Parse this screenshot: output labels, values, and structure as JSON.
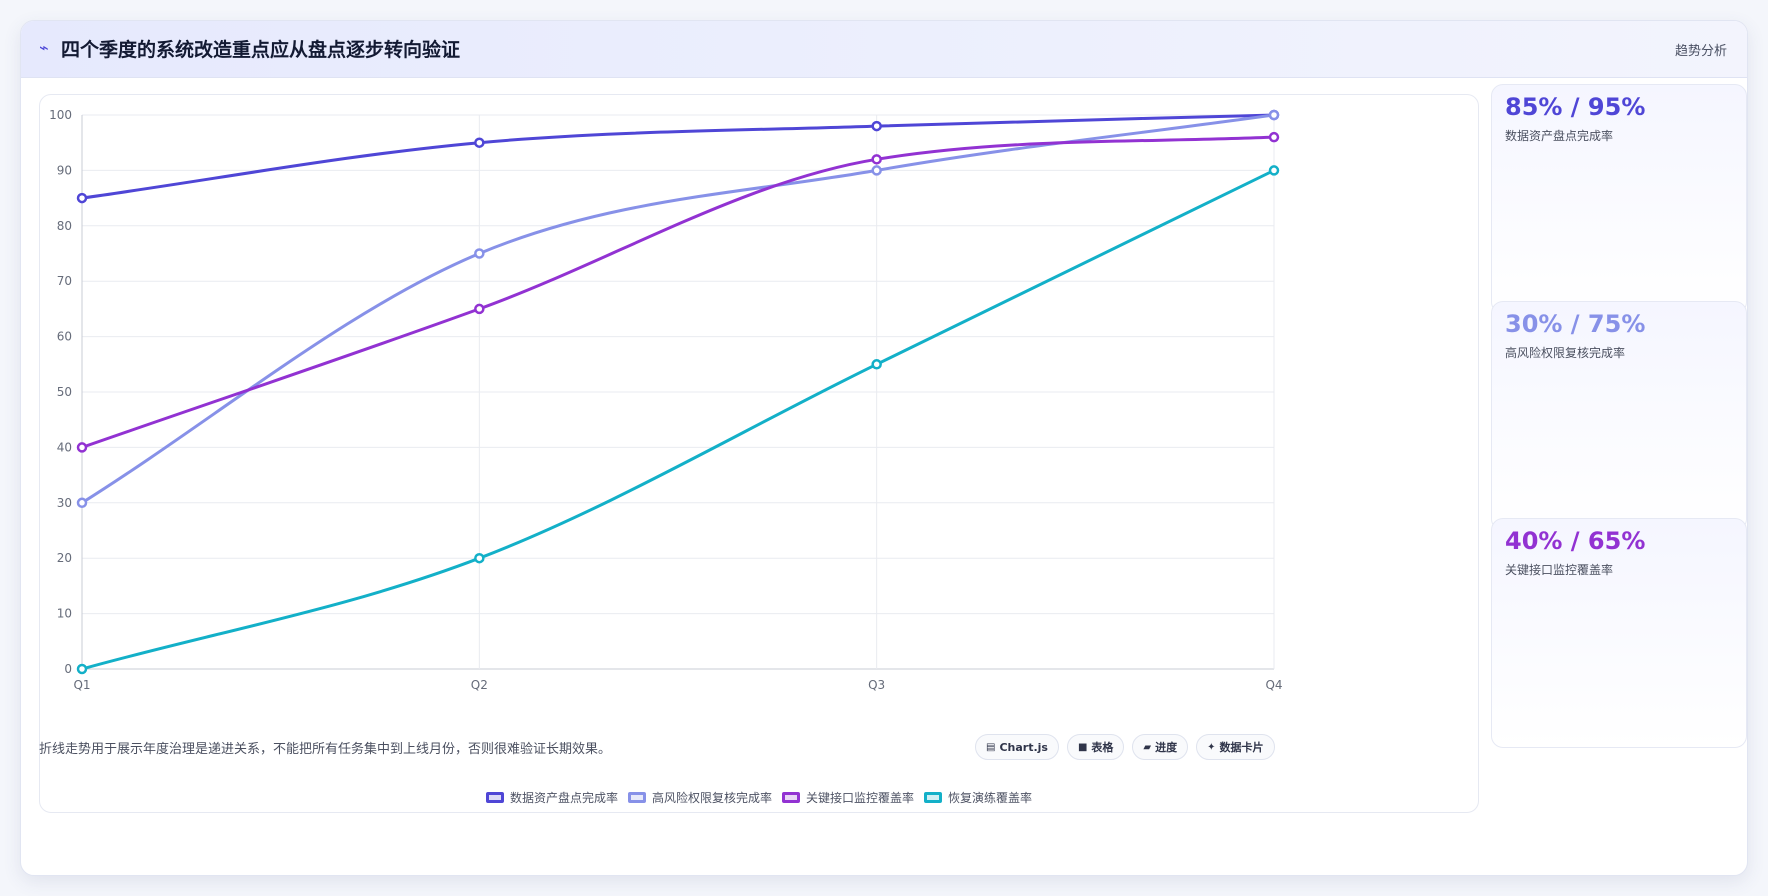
{
  "header": {
    "icon": "lightning-icon",
    "title": "四个季度的系统改造重点应从盘点逐步转向验证",
    "tab_label": "趋势分析"
  },
  "chart_data": {
    "type": "line",
    "categories": [
      "Q1",
      "Q2",
      "Q3",
      "Q4"
    ],
    "ylim": [
      0,
      100
    ],
    "yticks": [
      0,
      10,
      20,
      30,
      40,
      50,
      60,
      70,
      80,
      90,
      100
    ],
    "grid": true,
    "legend_position": "bottom",
    "title": "",
    "xlabel": "",
    "ylabel": "",
    "series": [
      {
        "name": "数据资产盘点完成率",
        "values": [
          85,
          95,
          98,
          100
        ],
        "color": "#4f46d6"
      },
      {
        "name": "高风险权限复核完成率",
        "values": [
          30,
          75,
          90,
          100
        ],
        "color": "#8791e8"
      },
      {
        "name": "关键接口监控覆盖率",
        "values": [
          40,
          65,
          92,
          96
        ],
        "color": "#9232d2"
      },
      {
        "name": "恢复演练覆盖率",
        "values": [
          0,
          20,
          55,
          90
        ],
        "color": "#13b0c8"
      }
    ]
  },
  "kpis": [
    {
      "value": "85% / 95%",
      "label": "数据资产盘点完成率",
      "color": "#4f46d6"
    },
    {
      "value": "30% / 75%",
      "label": "高风险权限复核完成率",
      "color": "#8791e8"
    },
    {
      "value": "40% / 65%",
      "label": "关键接口监控覆盖率",
      "color": "#9232d2"
    }
  ],
  "footer": {
    "note": "折线走势用于展示年度治理是递进关系，不能把所有任务集中到上线月份，否则很难验证长期效果。",
    "tools": [
      {
        "icon": "chart-icon",
        "label": "Chart.js"
      },
      {
        "icon": "table-icon",
        "label": "表格"
      },
      {
        "icon": "progress-icon",
        "label": "进度"
      },
      {
        "icon": "sparkle-icon",
        "label": "数据卡片"
      }
    ]
  }
}
